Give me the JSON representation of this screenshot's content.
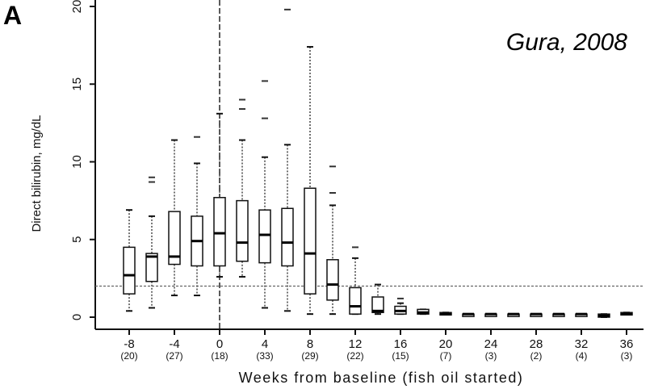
{
  "panel_letter": "A",
  "annotation": "Gura, 2008",
  "chart_data": {
    "type": "box",
    "xlabel": "Weeks from baseline (fish oil started)",
    "ylabel": "Direct bilirubin, mg/dL",
    "ylim": [
      0,
      20
    ],
    "xlim": [
      -11,
      37.5
    ],
    "yticks": [
      0,
      5,
      10,
      15,
      20
    ],
    "xticks": [
      -8,
      -4,
      0,
      4,
      8,
      12,
      16,
      20,
      24,
      28,
      32,
      36
    ],
    "n_labels": [
      "(20)",
      "(27)",
      "(18)",
      "(33)",
      "(29)",
      "(22)",
      "(15)",
      "(7)",
      "(3)",
      "(2)",
      "(4)",
      "(3)"
    ],
    "reference_line_y": 2,
    "reference_line_x": 0,
    "grid": false,
    "boxes": [
      {
        "week": -8,
        "low": 0.4,
        "q1": 1.5,
        "median": 2.7,
        "q3": 4.5,
        "high": 6.9,
        "outliers": []
      },
      {
        "week": -6,
        "low": 0.6,
        "q1": 2.3,
        "median": 3.9,
        "q3": 4.1,
        "high": 6.5,
        "outliers": [
          8.7,
          9.0
        ]
      },
      {
        "week": -4,
        "low": 1.4,
        "q1": 3.4,
        "median": 3.9,
        "q3": 6.8,
        "high": 11.4,
        "outliers": []
      },
      {
        "week": -2,
        "low": 1.4,
        "q1": 3.3,
        "median": 4.9,
        "q3": 6.5,
        "high": 9.9,
        "outliers": [
          11.6
        ]
      },
      {
        "week": 0,
        "low": 2.6,
        "q1": 3.3,
        "median": 5.4,
        "q3": 7.7,
        "high": 13.1,
        "outliers": []
      },
      {
        "week": 2,
        "low": 2.6,
        "q1": 3.6,
        "median": 4.8,
        "q3": 7.5,
        "high": 11.4,
        "outliers": [
          13.4,
          14.0
        ]
      },
      {
        "week": 4,
        "low": 0.6,
        "q1": 3.5,
        "median": 5.3,
        "q3": 6.9,
        "high": 10.3,
        "outliers": [
          12.8,
          15.2
        ]
      },
      {
        "week": 6,
        "low": 0.4,
        "q1": 3.3,
        "median": 4.8,
        "q3": 7.0,
        "high": 11.1,
        "outliers": [
          19.8
        ]
      },
      {
        "week": 8,
        "low": 0.2,
        "q1": 1.5,
        "median": 4.1,
        "q3": 8.3,
        "high": 17.4,
        "outliers": []
      },
      {
        "week": 10,
        "low": 0.2,
        "q1": 1.1,
        "median": 2.1,
        "q3": 3.7,
        "high": 7.2,
        "outliers": [
          8.0,
          9.7
        ]
      },
      {
        "week": 12,
        "low": 0.2,
        "q1": 0.2,
        "median": 0.7,
        "q3": 1.9,
        "high": 3.8,
        "outliers": [
          4.5
        ]
      },
      {
        "week": 14,
        "low": 0.2,
        "q1": 0.3,
        "median": 0.4,
        "q3": 1.3,
        "high": 2.1,
        "outliers": []
      },
      {
        "week": 16,
        "low": 0.2,
        "q1": 0.2,
        "median": 0.4,
        "q3": 0.7,
        "high": 0.9,
        "outliers": [
          1.2
        ]
      },
      {
        "week": 18,
        "low": 0.2,
        "q1": 0.2,
        "median": 0.3,
        "q3": 0.5,
        "high": 0.5,
        "outliers": []
      },
      {
        "week": 20,
        "low": 0.2,
        "q1": 0.2,
        "median": 0.2,
        "q3": 0.3,
        "high": 0.3,
        "outliers": []
      },
      {
        "week": 22,
        "low": 0.2,
        "q1": 0.2,
        "median": 0.2,
        "q3": 0.2,
        "high": 0.2,
        "outliers": []
      },
      {
        "week": 24,
        "low": 0.2,
        "q1": 0.2,
        "median": 0.2,
        "q3": 0.2,
        "high": 0.2,
        "outliers": []
      },
      {
        "week": 26,
        "low": 0.2,
        "q1": 0.2,
        "median": 0.2,
        "q3": 0.2,
        "high": 0.2,
        "outliers": []
      },
      {
        "week": 28,
        "low": 0.2,
        "q1": 0.2,
        "median": 0.2,
        "q3": 0.2,
        "high": 0.2,
        "outliers": []
      },
      {
        "week": 30,
        "low": 0.2,
        "q1": 0.2,
        "median": 0.2,
        "q3": 0.2,
        "high": 0.2,
        "outliers": []
      },
      {
        "week": 32,
        "low": 0.2,
        "q1": 0.2,
        "median": 0.2,
        "q3": 0.2,
        "high": 0.2,
        "outliers": []
      },
      {
        "week": 34,
        "low": 0.0,
        "q1": 0.0,
        "median": 0.1,
        "q3": 0.2,
        "high": 0.2,
        "outliers": []
      },
      {
        "week": 36,
        "low": 0.2,
        "q1": 0.2,
        "median": 0.2,
        "q3": 0.3,
        "high": 0.3,
        "outliers": []
      }
    ]
  }
}
